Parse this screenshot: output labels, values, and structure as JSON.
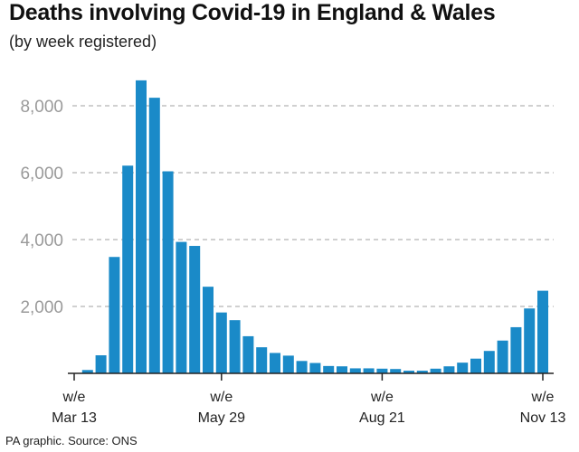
{
  "title": "Deaths involving Covid-19 in England & Wales",
  "subtitle": "(by week registered)",
  "footer": "PA graphic. Source: ONS",
  "colors": {
    "bar": "#1a8ac8",
    "grid": "#b5b5b5",
    "axis": "#222222",
    "ytick": "#9a9a9a"
  },
  "chart_data": {
    "type": "bar",
    "title": "Deaths involving Covid-19 in England & Wales",
    "subtitle": "(by week registered)",
    "xlabel": "",
    "ylabel": "",
    "ylim": [
      0,
      9000
    ],
    "yticks": [
      2000,
      4000,
      6000,
      8000
    ],
    "ytick_labels": [
      "2,000",
      "4,000",
      "6,000",
      "8,000"
    ],
    "grid": "horizontal dashed",
    "x_tick_labels": [
      {
        "index": 0,
        "lines": [
          "w/e",
          "Mar 13"
        ]
      },
      {
        "index": 11,
        "lines": [
          "w/e",
          "May 29"
        ]
      },
      {
        "index": 23,
        "lines": [
          "w/e",
          "Aug 21"
        ]
      },
      {
        "index": 35,
        "lines": [
          "w/e",
          "Nov 13"
        ]
      }
    ],
    "values": [
      10,
      100,
      540,
      3480,
      6210,
      8760,
      8240,
      6040,
      3930,
      3810,
      2590,
      1820,
      1590,
      1110,
      780,
      610,
      530,
      370,
      310,
      220,
      210,
      150,
      150,
      140,
      130,
      80,
      80,
      140,
      210,
      320,
      440,
      670,
      980,
      1380,
      1940,
      2470
    ]
  }
}
